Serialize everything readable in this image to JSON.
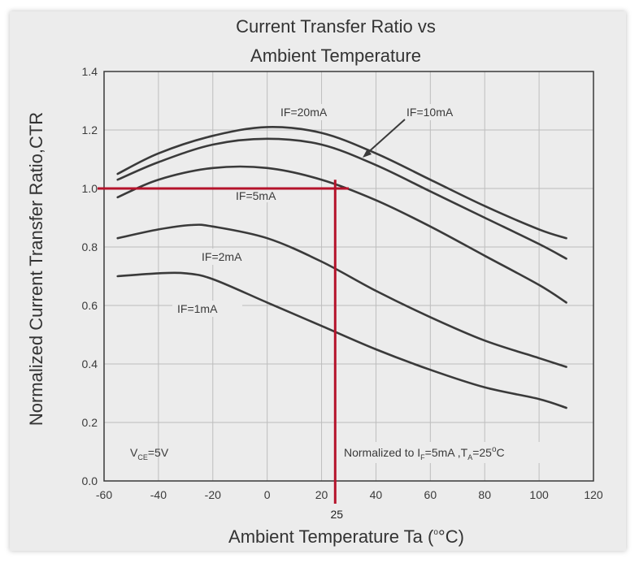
{
  "chart_data": {
    "type": "line",
    "title_lines": [
      "Current Transfer Ratio vs",
      "Ambient Temperature"
    ],
    "xlabel_main": "Ambient Temperature Ta (",
    "xlabel_unit": "°C)",
    "xlabel_sup": "o",
    "ylabel": "Normalized Current Transfer Ratio,CTR",
    "xlim": [
      -60,
      120
    ],
    "ylim": [
      0.0,
      1.4
    ],
    "xticks": [
      -60,
      -40,
      -20,
      0,
      20,
      40,
      60,
      80,
      100,
      120
    ],
    "xtick_labels": [
      "-60",
      "-40",
      "-20",
      "0",
      "20",
      "40",
      "60",
      "80",
      "100",
      "120"
    ],
    "yticks": [
      0.0,
      0.2,
      0.4,
      0.6,
      0.8,
      1.0,
      1.2,
      1.4
    ],
    "ytick_labels": [
      "0.0",
      "0.2",
      "0.4",
      "0.6",
      "0.8",
      "1.0",
      "1.2",
      "1.4"
    ],
    "grid": true,
    "series": [
      {
        "name": "IF=20mA",
        "x": [
          -55,
          -40,
          -20,
          0,
          20,
          40,
          60,
          80,
          100,
          110
        ],
        "y": [
          1.05,
          1.12,
          1.18,
          1.21,
          1.19,
          1.12,
          1.03,
          0.94,
          0.86,
          0.83
        ]
      },
      {
        "name": "IF=10mA",
        "x": [
          -55,
          -40,
          -20,
          0,
          20,
          40,
          60,
          80,
          100,
          110
        ],
        "y": [
          1.03,
          1.09,
          1.15,
          1.17,
          1.15,
          1.08,
          0.99,
          0.9,
          0.81,
          0.76
        ]
      },
      {
        "name": "IF=5mA",
        "x": [
          -55,
          -40,
          -20,
          0,
          20,
          40,
          60,
          80,
          100,
          110
        ],
        "y": [
          0.97,
          1.03,
          1.07,
          1.07,
          1.03,
          0.96,
          0.87,
          0.77,
          0.67,
          0.61
        ]
      },
      {
        "name": "IF=2mA",
        "x": [
          -55,
          -40,
          -28,
          -20,
          0,
          20,
          40,
          60,
          80,
          100,
          110
        ],
        "y": [
          0.83,
          0.86,
          0.875,
          0.87,
          0.83,
          0.75,
          0.65,
          0.56,
          0.48,
          0.42,
          0.39
        ]
      },
      {
        "name": "IF=1mA",
        "x": [
          -55,
          -40,
          -30,
          -20,
          0,
          20,
          40,
          60,
          80,
          100,
          110
        ],
        "y": [
          0.7,
          0.71,
          0.71,
          0.69,
          0.61,
          0.53,
          0.45,
          0.38,
          0.32,
          0.28,
          0.25
        ]
      }
    ],
    "series_label_text": [
      "IF=20mA",
      "IF=10mA",
      "IF=5mA",
      "IF=2mA",
      "IF=1mA"
    ],
    "annotations": {
      "vce": {
        "main": "V",
        "sub": "CE",
        "rest": "=5V"
      },
      "normalized": {
        "a": "Normalized to I",
        "a_sub": "F",
        "b": "=5mA ,T",
        "b_sub": "A",
        "c": "=25",
        "c_sup": "o",
        "d": "C"
      }
    },
    "reference": {
      "x": 25,
      "y": 1.0,
      "x_label": "25",
      "color": "#b5132b"
    },
    "line_color": "#3a3a3a",
    "grid_color": "#bdbdbd"
  }
}
